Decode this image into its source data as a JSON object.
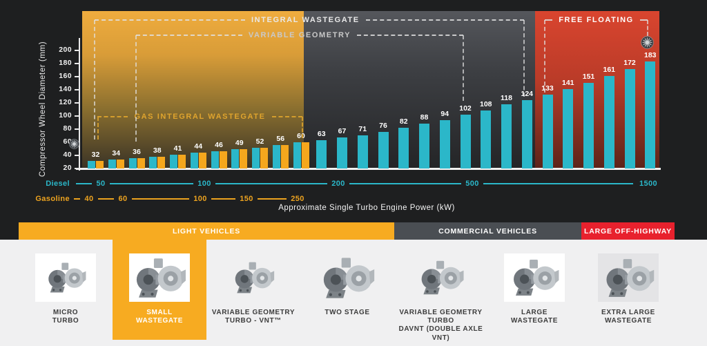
{
  "chart_data": {
    "type": "bar",
    "title": "",
    "ylabel": "Compressor Wheel Diameter (mm)",
    "xlabel": "Approximate Single Turbo Engine Power (kW)",
    "ylim": [
      20,
      200
    ],
    "y_ticks": [
      20,
      40,
      60,
      80,
      100,
      120,
      140,
      160,
      180,
      200
    ],
    "grid": false,
    "legend_position": "none",
    "bar_values": [
      32,
      34,
      36,
      38,
      41,
      44,
      46,
      49,
      52,
      56,
      60,
      63,
      67,
      71,
      76,
      82,
      88,
      94,
      102,
      108,
      118,
      124,
      133,
      141,
      151,
      161,
      172,
      183
    ],
    "paired_gasoline_count": 11,
    "series": [
      {
        "name": "Diesel",
        "color": "#2bb7c9",
        "values": [
          32,
          34,
          36,
          38,
          41,
          44,
          46,
          49,
          52,
          56,
          60,
          63,
          67,
          71,
          76,
          82,
          88,
          94,
          102,
          108,
          118,
          124,
          133,
          141,
          151,
          161,
          172,
          183
        ]
      },
      {
        "name": "Gasoline",
        "color": "#f5a71d",
        "values": [
          32,
          34,
          36,
          38,
          41,
          44,
          46,
          49,
          52,
          56,
          60
        ]
      }
    ],
    "x_scales": [
      {
        "name": "Diesel",
        "color": "#2bb7c9",
        "ticks": [
          "50",
          "100",
          "200",
          "500",
          "1500"
        ]
      },
      {
        "name": "Gasoline",
        "color": "#eda31f",
        "ticks": [
          "40",
          "60",
          "100",
          "150",
          "250"
        ]
      }
    ],
    "annotations": [
      "INTEGRAL WASTEGATE",
      "VARIABLE GEOMETRY",
      "GAS INTEGRAL WASTEGATE",
      "FREE FLOATING"
    ]
  },
  "categories": [
    {
      "label": "LIGHT VEHICLES",
      "color": "#f7ab21"
    },
    {
      "label": "COMMERCIAL VEHICLES",
      "color": "#4a4e53"
    },
    {
      "label": "LARGE OFF-HIGHWAY",
      "color": "#e8212d"
    }
  ],
  "products": {
    "items": [
      {
        "label_lines": [
          "MICRO",
          "TURBO"
        ],
        "selected": false
      },
      {
        "label_lines": [
          "SMALL",
          "WASTEGATE"
        ],
        "selected": true
      },
      {
        "label_lines": [
          "VARIABLE GEOMETRY",
          "TURBO - VNT™"
        ],
        "selected": false
      },
      {
        "label_lines": [
          "TWO STAGE"
        ],
        "selected": false
      },
      {
        "label_lines": [
          "VARIABLE GEOMETRY",
          "TURBO",
          "DAVNT (DOUBLE AXLE",
          "VNT)"
        ],
        "selected": false
      },
      {
        "label_lines": [
          "LARGE",
          "WASTEGATE"
        ],
        "selected": false
      },
      {
        "label_lines": [
          "EXTRA LARGE",
          "WASTEGATE"
        ],
        "selected": false
      }
    ]
  }
}
